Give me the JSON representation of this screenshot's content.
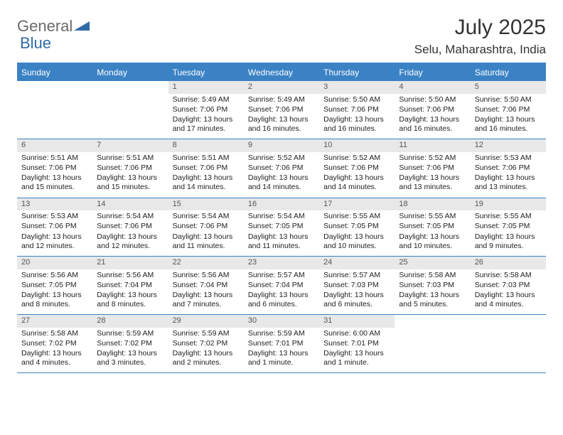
{
  "logo": {
    "text_a": "General",
    "text_b": "Blue",
    "text_a_color": "#6b6b6b",
    "text_b_color": "#2f6aa8",
    "icon_color": "#2f6aa8"
  },
  "title": "July 2025",
  "location": "Selu, Maharashtra, India",
  "theme": {
    "header_bg": "#3b82c4",
    "header_text": "#ffffff",
    "daynum_bg": "#e8e8e8",
    "daynum_text": "#555555",
    "border": "#3b82c4",
    "body_font_size": 10.5
  },
  "day_headers": [
    "Sunday",
    "Monday",
    "Tuesday",
    "Wednesday",
    "Thursday",
    "Friday",
    "Saturday"
  ],
  "weeks": [
    [
      {
        "blank": true
      },
      {
        "blank": true
      },
      {
        "n": "1",
        "sr": "5:49 AM",
        "ss": "7:06 PM",
        "dl": "13 hours and 17 minutes."
      },
      {
        "n": "2",
        "sr": "5:49 AM",
        "ss": "7:06 PM",
        "dl": "13 hours and 16 minutes."
      },
      {
        "n": "3",
        "sr": "5:50 AM",
        "ss": "7:06 PM",
        "dl": "13 hours and 16 minutes."
      },
      {
        "n": "4",
        "sr": "5:50 AM",
        "ss": "7:06 PM",
        "dl": "13 hours and 16 minutes."
      },
      {
        "n": "5",
        "sr": "5:50 AM",
        "ss": "7:06 PM",
        "dl": "13 hours and 16 minutes."
      }
    ],
    [
      {
        "n": "6",
        "sr": "5:51 AM",
        "ss": "7:06 PM",
        "dl": "13 hours and 15 minutes."
      },
      {
        "n": "7",
        "sr": "5:51 AM",
        "ss": "7:06 PM",
        "dl": "13 hours and 15 minutes."
      },
      {
        "n": "8",
        "sr": "5:51 AM",
        "ss": "7:06 PM",
        "dl": "13 hours and 14 minutes."
      },
      {
        "n": "9",
        "sr": "5:52 AM",
        "ss": "7:06 PM",
        "dl": "13 hours and 14 minutes."
      },
      {
        "n": "10",
        "sr": "5:52 AM",
        "ss": "7:06 PM",
        "dl": "13 hours and 14 minutes."
      },
      {
        "n": "11",
        "sr": "5:52 AM",
        "ss": "7:06 PM",
        "dl": "13 hours and 13 minutes."
      },
      {
        "n": "12",
        "sr": "5:53 AM",
        "ss": "7:06 PM",
        "dl": "13 hours and 13 minutes."
      }
    ],
    [
      {
        "n": "13",
        "sr": "5:53 AM",
        "ss": "7:06 PM",
        "dl": "13 hours and 12 minutes."
      },
      {
        "n": "14",
        "sr": "5:54 AM",
        "ss": "7:06 PM",
        "dl": "13 hours and 12 minutes."
      },
      {
        "n": "15",
        "sr": "5:54 AM",
        "ss": "7:06 PM",
        "dl": "13 hours and 11 minutes."
      },
      {
        "n": "16",
        "sr": "5:54 AM",
        "ss": "7:05 PM",
        "dl": "13 hours and 11 minutes."
      },
      {
        "n": "17",
        "sr": "5:55 AM",
        "ss": "7:05 PM",
        "dl": "13 hours and 10 minutes."
      },
      {
        "n": "18",
        "sr": "5:55 AM",
        "ss": "7:05 PM",
        "dl": "13 hours and 10 minutes."
      },
      {
        "n": "19",
        "sr": "5:55 AM",
        "ss": "7:05 PM",
        "dl": "13 hours and 9 minutes."
      }
    ],
    [
      {
        "n": "20",
        "sr": "5:56 AM",
        "ss": "7:05 PM",
        "dl": "13 hours and 8 minutes."
      },
      {
        "n": "21",
        "sr": "5:56 AM",
        "ss": "7:04 PM",
        "dl": "13 hours and 8 minutes."
      },
      {
        "n": "22",
        "sr": "5:56 AM",
        "ss": "7:04 PM",
        "dl": "13 hours and 7 minutes."
      },
      {
        "n": "23",
        "sr": "5:57 AM",
        "ss": "7:04 PM",
        "dl": "13 hours and 6 minutes."
      },
      {
        "n": "24",
        "sr": "5:57 AM",
        "ss": "7:03 PM",
        "dl": "13 hours and 6 minutes."
      },
      {
        "n": "25",
        "sr": "5:58 AM",
        "ss": "7:03 PM",
        "dl": "13 hours and 5 minutes."
      },
      {
        "n": "26",
        "sr": "5:58 AM",
        "ss": "7:03 PM",
        "dl": "13 hours and 4 minutes."
      }
    ],
    [
      {
        "n": "27",
        "sr": "5:58 AM",
        "ss": "7:02 PM",
        "dl": "13 hours and 4 minutes."
      },
      {
        "n": "28",
        "sr": "5:59 AM",
        "ss": "7:02 PM",
        "dl": "13 hours and 3 minutes."
      },
      {
        "n": "29",
        "sr": "5:59 AM",
        "ss": "7:02 PM",
        "dl": "13 hours and 2 minutes."
      },
      {
        "n": "30",
        "sr": "5:59 AM",
        "ss": "7:01 PM",
        "dl": "13 hours and 1 minute."
      },
      {
        "n": "31",
        "sr": "6:00 AM",
        "ss": "7:01 PM",
        "dl": "13 hours and 1 minute."
      },
      {
        "blank": true
      },
      {
        "blank": true
      }
    ]
  ],
  "labels": {
    "sunrise": "Sunrise:",
    "sunset": "Sunset:",
    "daylight": "Daylight:"
  }
}
